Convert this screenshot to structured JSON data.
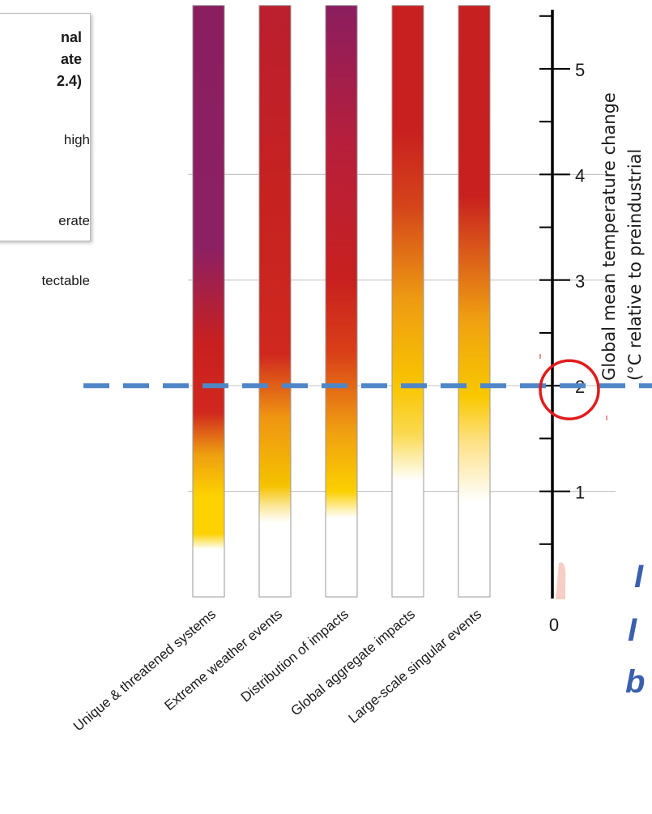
{
  "legend": {
    "title_lines": [
      "nal",
      "ate",
      "2.4)"
    ],
    "items": [
      "high",
      "erate",
      "tectable"
    ]
  },
  "cutoff_text": [
    "I",
    "I",
    "b"
  ],
  "colors": {
    "very_high": "#8b1e5f",
    "high": "#c8201f",
    "moderate": "#f9c800",
    "undetectable": "#ffffff",
    "threshold_line": "#4f86c6",
    "highlight_circle": "#e11c1c"
  },
  "chart_data": {
    "type": "heatmap",
    "categories": [
      "Unique & threatened systems",
      "Extreme weather events",
      "Distribution of impacts",
      "Global aggregate impacts",
      "Large-scale singular events"
    ],
    "ylabel_lines": [
      "Global mean temperature change",
      "(°C relative to preindustrial"
    ],
    "ylim": [
      0,
      5.6
    ],
    "y_ticks": [
      0,
      1,
      2,
      3,
      4,
      5
    ],
    "threshold": 2,
    "series": [
      {
        "stops": [
          [
            0,
            "#ffffff"
          ],
          [
            0.45,
            "#ffffff"
          ],
          [
            0.6,
            "#fdd200"
          ],
          [
            0.95,
            "#fdd200"
          ],
          [
            1.35,
            "#ee9f10"
          ],
          [
            1.75,
            "#d0271f"
          ],
          [
            2.4,
            "#c8201f"
          ],
          [
            3.3,
            "#8c2063"
          ],
          [
            5.6,
            "#8b1e5f"
          ]
        ]
      },
      {
        "stops": [
          [
            0,
            "#ffffff"
          ],
          [
            0.7,
            "#ffffff"
          ],
          [
            0.85,
            "#fce9a0"
          ],
          [
            1.05,
            "#f5c200"
          ],
          [
            1.7,
            "#ef9512"
          ],
          [
            2.3,
            "#d0281f"
          ],
          [
            3.8,
            "#c62220"
          ],
          [
            5.6,
            "#bb1f2e"
          ]
        ]
      },
      {
        "stops": [
          [
            0,
            "#ffffff"
          ],
          [
            0.75,
            "#ffffff"
          ],
          [
            1.0,
            "#fcd000"
          ],
          [
            1.6,
            "#ef9c12"
          ],
          [
            2.3,
            "#da4018"
          ],
          [
            3.0,
            "#c8201f"
          ],
          [
            4.3,
            "#b61f3b"
          ],
          [
            5.6,
            "#8b1e5f"
          ]
        ]
      },
      {
        "stops": [
          [
            0,
            "#ffffff"
          ],
          [
            1.1,
            "#ffffff"
          ],
          [
            1.55,
            "#fad94d"
          ],
          [
            2.0,
            "#f9c500"
          ],
          [
            2.8,
            "#ee9c12"
          ],
          [
            3.7,
            "#d4441a"
          ],
          [
            4.4,
            "#c8201f"
          ],
          [
            5.6,
            "#c82020"
          ]
        ]
      },
      {
        "stops": [
          [
            0,
            "#ffffff"
          ],
          [
            0.9,
            "#ffffff"
          ],
          [
            1.45,
            "#fde28a"
          ],
          [
            1.9,
            "#f9c800"
          ],
          [
            2.6,
            "#f0a210"
          ],
          [
            3.3,
            "#d9561a"
          ],
          [
            3.8,
            "#c8201f"
          ],
          [
            5.6,
            "#c62020"
          ]
        ]
      }
    ]
  }
}
